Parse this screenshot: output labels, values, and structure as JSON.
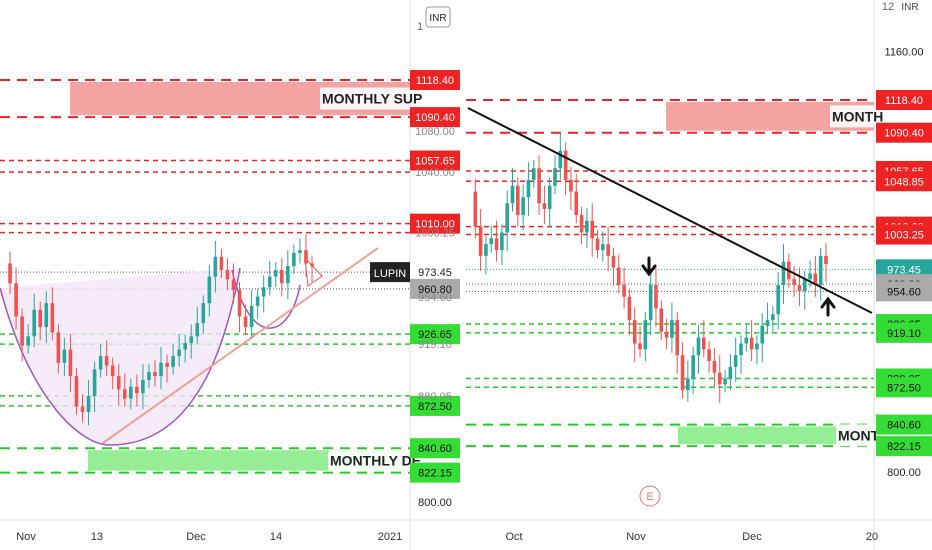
{
  "chart_data": [
    {
      "type": "candlestick",
      "symbol": "LUPIN",
      "currency_label": "INR",
      "x_ticks": [
        "Nov",
        "13",
        "Dec",
        "14",
        "2021"
      ],
      "y_axis_labels": [
        1118.4,
        1090.4,
        1057.65,
        1010.0,
        973.45,
        960.8,
        926.65,
        872.5,
        840.6,
        822.15,
        800.0
      ],
      "ylim": [
        790,
        1145
      ],
      "last_price": 973.45,
      "horizontal_lines": {
        "red": [
          1118.4,
          1090.4,
          1057.65,
          1048.85,
          1010.0,
          1003.25
        ],
        "green": [
          926.65,
          919.1,
          880.05,
          872.5,
          840.6,
          822.15
        ]
      },
      "zones": [
        {
          "label": "MONTHLY SUPPLY",
          "top": 1118.4,
          "bottom": 1090.4,
          "color": "#f28b8b"
        },
        {
          "label": "MONTHLY DEMAND",
          "top": 840.6,
          "bottom": 822.15,
          "color": "#7be87b"
        }
      ],
      "annotations": [
        "cup pattern (purple arc)",
        "rising trendline (salmon)"
      ],
      "price_path": [
        980,
        965,
        940,
        918,
        925,
        945,
        932,
        950,
        928,
        905,
        915,
        895,
        872,
        868,
        880,
        900,
        910,
        903,
        895,
        885,
        878,
        887,
        882,
        892,
        898,
        895,
        905,
        902,
        910,
        915,
        920,
        925,
        935,
        950,
        970,
        985,
        975,
        968,
        960,
        940,
        932,
        948,
        955,
        962,
        970,
        975,
        965,
        978,
        988,
        990,
        980,
        978
      ]
    },
    {
      "type": "candlestick",
      "symbol": "LUPIN",
      "currency_label": "INR",
      "x_ticks": [
        "Oct",
        "Nov",
        "Dec",
        "20"
      ],
      "y_axis_labels": [
        1160.0,
        1118.4,
        1090.4,
        1057.65,
        1048.85,
        1010.0,
        1003.25,
        973.45,
        960.8,
        954.6,
        926.65,
        919.1,
        880.05,
        872.5,
        840.6,
        822.15,
        800.0
      ],
      "ylim": [
        790,
        1195
      ],
      "last_price": 973.45,
      "horizontal_lines": {
        "red": [
          1118.4,
          1090.4,
          1057.65,
          1048.85,
          1010.0,
          1003.25
        ],
        "green": [
          926.65,
          919.1,
          880.05,
          872.5,
          840.6,
          822.15
        ]
      },
      "zones": [
        {
          "label": "MONTHLY SUPPLY",
          "top": 1118.4,
          "bottom": 1090.4,
          "color": "#f28b8b"
        },
        {
          "label": "MONTHLY DEMAND",
          "top": 840.6,
          "bottom": 822.15,
          "color": "#7be87b"
        }
      ],
      "annotations": [
        "descending trendline (black)",
        "down arrow",
        "up arrow",
        "E (earnings) marker"
      ],
      "price_path": [
        1040,
        1010,
        985,
        995,
        1000,
        990,
        1005,
        1030,
        1045,
        1020,
        1035,
        1050,
        1060,
        1030,
        1025,
        1045,
        1060,
        1075,
        1050,
        1040,
        1020,
        1005,
        1015,
        1000,
        990,
        995,
        985,
        975,
        960,
        950,
        930,
        910,
        905,
        930,
        960,
        940,
        920,
        915,
        930,
        900,
        870,
        880,
        900,
        915,
        905,
        895,
        885,
        875,
        880,
        890,
        900,
        910,
        915,
        905,
        910,
        925,
        930,
        935,
        960,
        980,
        965,
        960,
        955,
        965,
        970,
        960,
        985,
        978
      ]
    }
  ],
  "ui": {
    "watermark": "E",
    "labels": {
      "left_supply": "MONTHLY SUP",
      "left_demand": "MONTHLY DE",
      "right_supply": "MONTH",
      "right_demand": "MONT",
      "symbol": "LUPIN",
      "inr": "INR",
      "clipped_top_left": "1",
      "clipped_top_right": "12"
    }
  }
}
